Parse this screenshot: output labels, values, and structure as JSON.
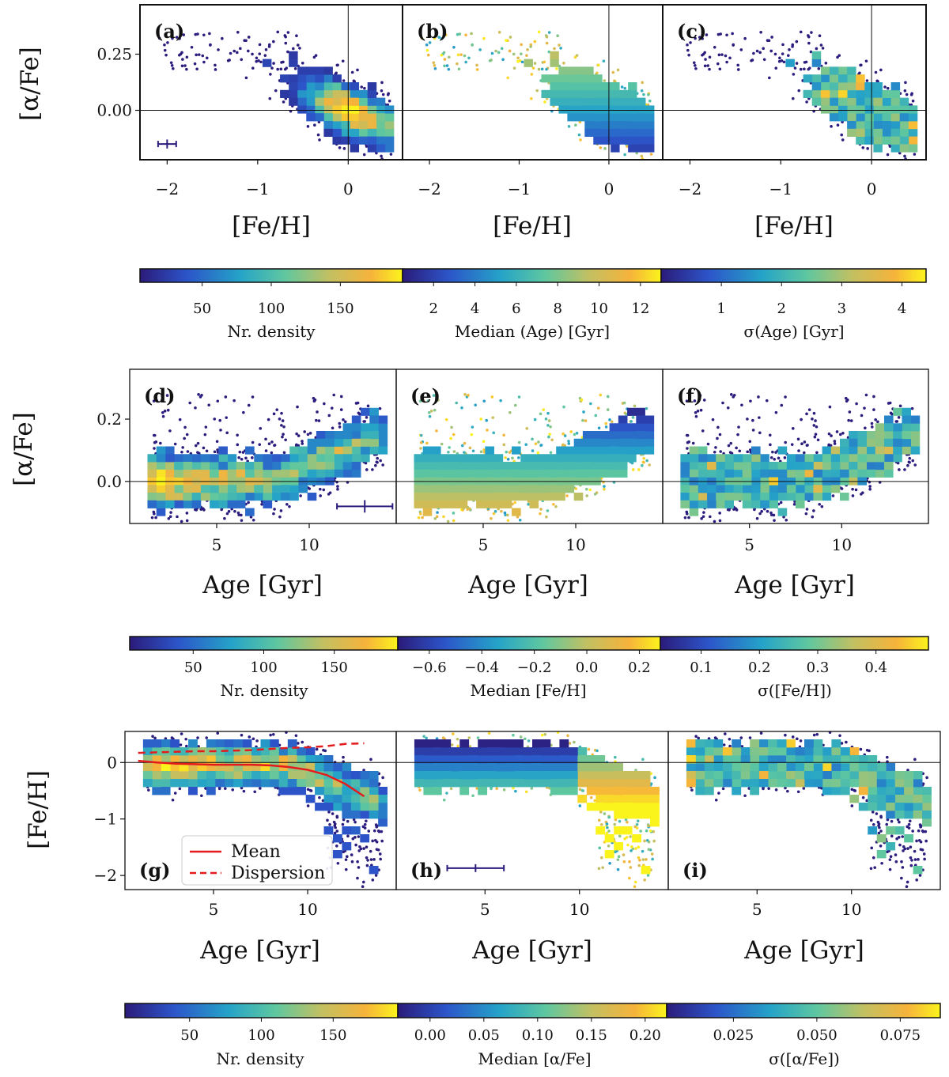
{
  "colormap": [
    "#440154",
    "#3b528b",
    "#21918c",
    "#5ec962",
    "#fde725"
  ],
  "colormap_viridis_like": [
    "#2b1b7a",
    "#2c55c9",
    "#25a3c8",
    "#5ec7a0",
    "#c2c062",
    "#f6b33b",
    "#fbf41c"
  ],
  "scatter_color": "#2b1d7d",
  "axis_color": "#111111",
  "rows": [
    {
      "id": "row1",
      "ylabel": "[α/Fe]",
      "xlabel": "[Fe/H]",
      "xlim": [
        -2.3,
        0.6
      ],
      "ylim": [
        -0.22,
        0.47
      ],
      "xticks": [
        -2,
        -1,
        0
      ],
      "xtick_labels": [
        "−2",
        "−1",
        "0"
      ],
      "yticks": [
        0.25,
        0.0
      ],
      "ytick_labels": [
        "0.25",
        "0.00"
      ],
      "ref_x": 0,
      "ref_y": 0,
      "panels": [
        {
          "label": "(a)",
          "mode": "density"
        },
        {
          "label": "(b)",
          "mode": "median"
        },
        {
          "label": "(c)",
          "mode": "sigma"
        }
      ],
      "colorbars": [
        {
          "label": "Nr. density",
          "ticks": [
            "50",
            "100",
            "150"
          ],
          "range": [
            5,
            195
          ],
          "values": [
            50,
            100,
            150
          ]
        },
        {
          "label": "Median (Age) [Gyr]",
          "ticks": [
            "2",
            "4",
            "6",
            "8",
            "10",
            "12"
          ],
          "range": [
            0.5,
            13
          ],
          "values": [
            2,
            4,
            6,
            8,
            10,
            12
          ]
        },
        {
          "label": "σ(Age) [Gyr]",
          "ticks": [
            "1",
            "2",
            "3",
            "4"
          ],
          "range": [
            0.0,
            4.4
          ],
          "values": [
            1,
            2,
            3,
            4
          ]
        }
      ]
    },
    {
      "id": "row2",
      "ylabel": "[α/Fe]",
      "xlabel": "Age [Gyr]",
      "xlim": [
        0.3,
        14.7
      ],
      "ylim": [
        -0.135,
        0.36
      ],
      "xticks": [
        5,
        10
      ],
      "xtick_labels": [
        "5",
        "10"
      ],
      "yticks": [
        0.2,
        0.0
      ],
      "ytick_labels": [
        "0.2",
        "0.0"
      ],
      "ref_x": null,
      "ref_y": 0,
      "panels": [
        {
          "label": "(d)",
          "mode": "density"
        },
        {
          "label": "(e)",
          "mode": "median"
        },
        {
          "label": "(f)",
          "mode": "sigma"
        }
      ],
      "colorbars": [
        {
          "label": "Nr. density",
          "ticks": [
            "50",
            "100",
            "150"
          ],
          "range": [
            5,
            195
          ],
          "values": [
            50,
            100,
            150
          ]
        },
        {
          "label": "Median [Fe/H]",
          "ticks": [
            "−0.6",
            "−0.4",
            "−0.2",
            "0.0",
            "0.2"
          ],
          "range": [
            -0.72,
            0.28
          ],
          "values": [
            -0.6,
            -0.4,
            -0.2,
            0.0,
            0.2
          ]
        },
        {
          "label": "σ([Fe/H])",
          "ticks": [
            "0.1",
            "0.2",
            "0.3",
            "0.4"
          ],
          "range": [
            0.03,
            0.49
          ],
          "values": [
            0.1,
            0.2,
            0.3,
            0.4
          ]
        }
      ]
    },
    {
      "id": "row3",
      "ylabel": "[Fe/H]",
      "xlabel": "Age [Gyr]",
      "xlim": [
        0.3,
        14.7
      ],
      "ylim": [
        -2.25,
        0.55
      ],
      "xticks": [
        5,
        10
      ],
      "xtick_labels": [
        "5",
        "10"
      ],
      "yticks": [
        0,
        -1,
        -2
      ],
      "ytick_labels": [
        "0",
        "−1",
        "−2"
      ],
      "ref_x": null,
      "ref_y": 0,
      "panels": [
        {
          "label": "(g)",
          "mode": "density"
        },
        {
          "label": "(h)",
          "mode": "median"
        },
        {
          "label": "(i)",
          "mode": "sigma"
        }
      ],
      "legend": [
        {
          "label": "Mean",
          "style": "solid",
          "color": "#e41a1c"
        },
        {
          "label": "Dispersion",
          "style": "dashed",
          "color": "#e41a1c"
        }
      ],
      "colorbars": [
        {
          "label": "Nr. density",
          "ticks": [
            "50",
            "100",
            "150"
          ],
          "range": [
            5,
            195
          ],
          "values": [
            50,
            100,
            150
          ]
        },
        {
          "label": "Median [α/Fe]",
          "ticks": [
            "0.00",
            "0.05",
            "0.10",
            "0.15",
            "0.20"
          ],
          "range": [
            -0.03,
            0.22
          ],
          "values": [
            0.0,
            0.05,
            0.1,
            0.15,
            0.2
          ]
        },
        {
          "label": "σ([α/Fe])",
          "ticks": [
            "0.025",
            "0.050",
            "0.075"
          ],
          "range": [
            0.005,
            0.087
          ],
          "values": [
            0.025,
            0.05,
            0.075
          ]
        }
      ]
    }
  ],
  "chart_data": [
    {
      "type": "heatmap",
      "title": "",
      "xlabel": "[Fe/H]",
      "ylabel": "[α/Fe]",
      "xlim": [
        -2.3,
        0.6
      ],
      "ylim": [
        -0.22,
        0.47
      ],
      "panels": [
        "(a) Nr. density",
        "(b) Median (Age) [Gyr]",
        "(c) σ(Age) [Gyr]"
      ],
      "cloud": {
        "center_x": 0.0,
        "center_y": 0.0,
        "extent_x": [
          -0.95,
          0.55
        ],
        "trend": "[α/Fe] decreases from ~0.27 at [Fe/H]=-0.8 to ~-0.05 at [Fe/H]=0.5"
      },
      "density_peak": {
        "feh": 0.0,
        "alpha": -0.01,
        "value": 190
      },
      "error_bar": {
        "x": -2.0,
        "y": -0.15,
        "xerr": 0.1,
        "yerr": 0.02
      }
    },
    {
      "type": "heatmap",
      "title": "",
      "xlabel": "Age [Gyr]",
      "ylabel": "[α/Fe]",
      "xlim": [
        0.3,
        14.7
      ],
      "ylim": [
        -0.135,
        0.36
      ],
      "panels": [
        "(d) Nr. density",
        "(e) Median [Fe/H]",
        "(f) σ([Fe/H])"
      ],
      "cloud": {
        "age_range": [
          1.5,
          14
        ],
        "alpha_range": [
          -0.09,
          0.3
        ],
        "trend": "[α/Fe] rises with age above ~8 Gyr"
      },
      "density_peak": {
        "age": 3.3,
        "alpha": -0.01,
        "value": 190
      },
      "error_bar": {
        "x": 13,
        "y": -0.08,
        "xerr": 1.5,
        "yerr": 0.02
      }
    },
    {
      "type": "heatmap",
      "title": "",
      "xlabel": "Age [Gyr]",
      "ylabel": "[Fe/H]",
      "xlim": [
        0.3,
        14.7
      ],
      "ylim": [
        -2.25,
        0.55
      ],
      "panels": [
        "(g) Nr. density",
        "(h) Median [α/Fe]",
        "(i) σ([α/Fe])"
      ],
      "series": [
        {
          "name": "Mean",
          "x": [
            1,
            2,
            3,
            4,
            5,
            6,
            7,
            8,
            9,
            10,
            11,
            12,
            13
          ],
          "values": [
            0.03,
            0.0,
            -0.02,
            -0.03,
            -0.04,
            -0.04,
            -0.04,
            -0.05,
            -0.08,
            -0.13,
            -0.22,
            -0.38,
            -0.6
          ]
        },
        {
          "name": "Dispersion",
          "x": [
            1,
            2,
            3,
            4,
            5,
            6,
            7,
            8,
            9,
            10,
            11,
            12,
            13
          ],
          "values": [
            0.17,
            0.18,
            0.19,
            0.2,
            0.2,
            0.21,
            0.22,
            0.24,
            0.26,
            0.27,
            0.29,
            0.33,
            0.34
          ]
        }
      ],
      "density_peak": {
        "age": 3.5,
        "feh": -0.1,
        "value": 190
      },
      "error_bar": {
        "x": 4.5,
        "y": -1.87,
        "xerr": 1.5,
        "yerr": 0.07
      }
    }
  ]
}
